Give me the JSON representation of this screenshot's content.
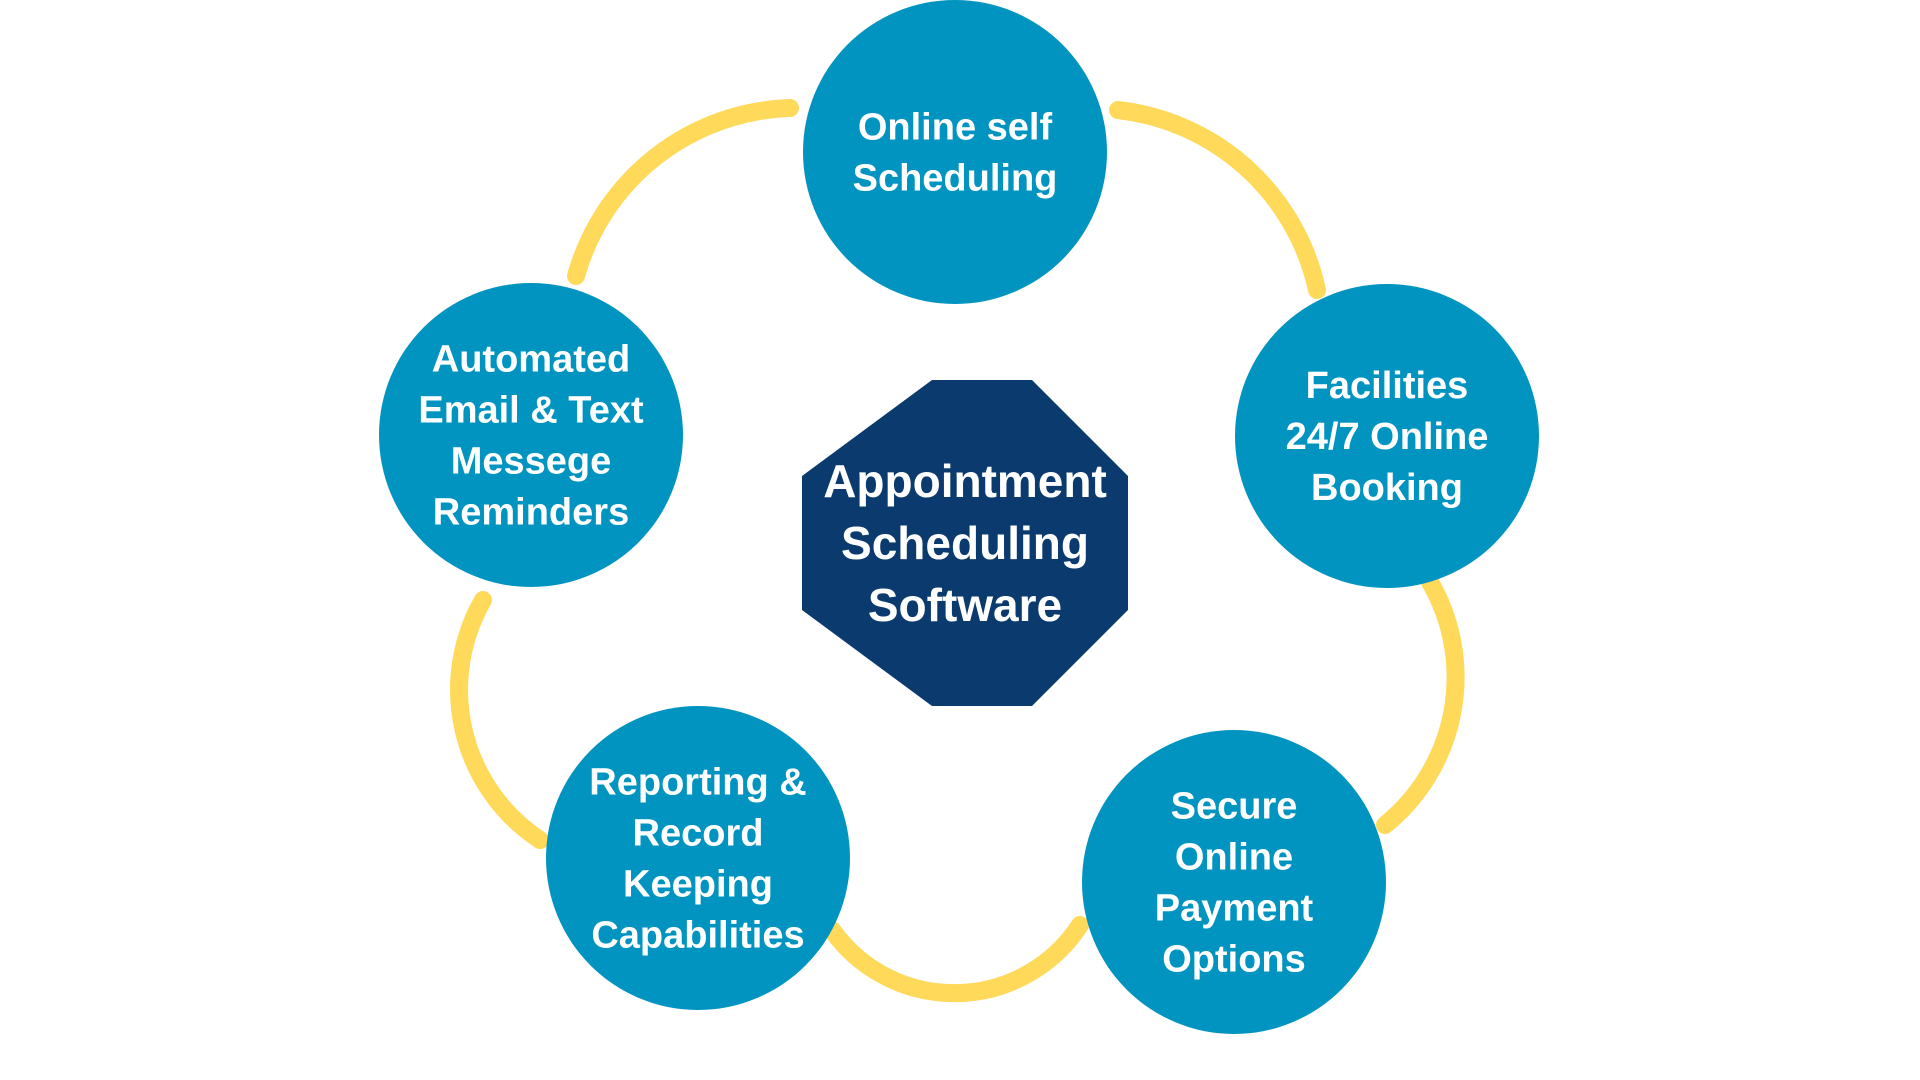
{
  "diagram": {
    "center": {
      "lines": [
        "Appointment",
        "Scheduling",
        "Software"
      ]
    },
    "nodes": [
      {
        "id": "online-self-scheduling",
        "lines": [
          "Online self",
          "Scheduling"
        ]
      },
      {
        "id": "facilities-24-7-online-booking",
        "lines": [
          "Facilities",
          "24/7 Online",
          "Booking"
        ]
      },
      {
        "id": "secure-online-payment-options",
        "lines": [
          "Secure",
          "Online",
          "Payment",
          "Options"
        ]
      },
      {
        "id": "reporting-record-keeping-capabilities",
        "lines": [
          "Reporting &",
          "Record",
          "Keeping",
          "Capabilities"
        ]
      },
      {
        "id": "automated-email-text-reminders",
        "lines": [
          "Automated",
          "Email & Text",
          "Messege",
          "Reminders"
        ]
      }
    ],
    "colors": {
      "circle": "#0294C0",
      "center": "#0B3A6E",
      "arc": "#FFD95A",
      "text": "#FFFFFF"
    }
  }
}
